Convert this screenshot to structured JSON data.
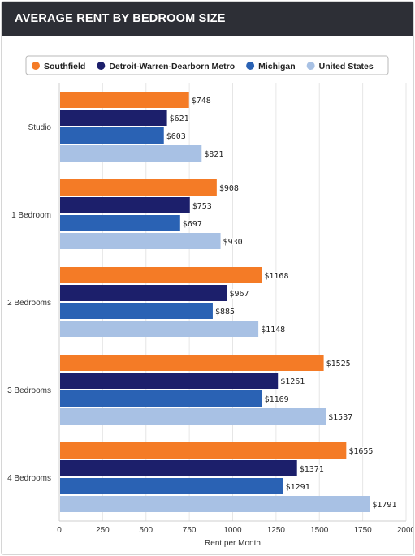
{
  "header": {
    "title": "AVERAGE RENT BY BEDROOM SIZE"
  },
  "chart_data": {
    "type": "bar",
    "orientation": "horizontal",
    "categories": [
      "Studio",
      "1 Bedroom",
      "2 Bedrooms",
      "3 Bedrooms",
      "4 Bedrooms"
    ],
    "series": [
      {
        "name": "Southfield",
        "color": "#f47b26",
        "values": [
          748,
          908,
          1168,
          1525,
          1655
        ]
      },
      {
        "name": "Detroit-Warren-Dearborn Metro",
        "color": "#1c1f6b",
        "values": [
          621,
          753,
          967,
          1261,
          1371
        ]
      },
      {
        "name": "Michigan",
        "color": "#2a62b4",
        "values": [
          603,
          697,
          885,
          1169,
          1291
        ]
      },
      {
        "name": "United States",
        "color": "#a8c1e4",
        "values": [
          821,
          930,
          1148,
          1537,
          1791
        ]
      }
    ],
    "value_prefix": "$",
    "xlabel": "Rent per Month",
    "xlim": [
      0,
      2000
    ],
    "xticks": [
      0,
      250,
      500,
      750,
      1000,
      1250,
      1500,
      1750,
      2000
    ],
    "grid": "vertical",
    "legend_position": "top"
  }
}
